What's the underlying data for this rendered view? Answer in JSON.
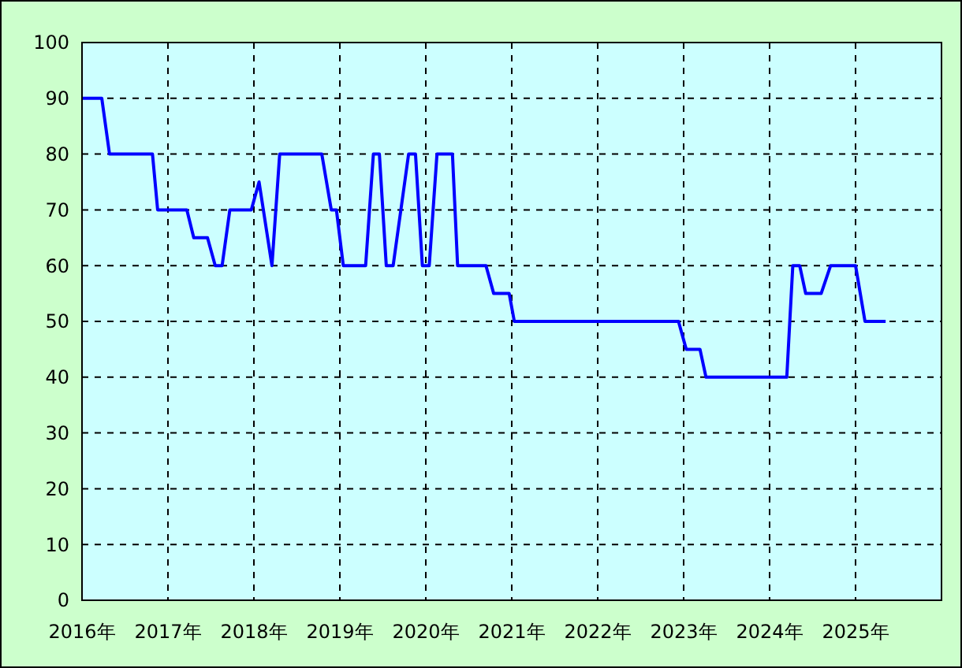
{
  "chart_data": {
    "type": "line",
    "xlim": [
      2016,
      2026
    ],
    "ylim": [
      0,
      100
    ],
    "xticks": [
      {
        "value": 2016,
        "label": "2016年"
      },
      {
        "value": 2017,
        "label": "2017年"
      },
      {
        "value": 2018,
        "label": "2018年"
      },
      {
        "value": 2019,
        "label": "2019年"
      },
      {
        "value": 2020,
        "label": "2020年"
      },
      {
        "value": 2021,
        "label": "2021年"
      },
      {
        "value": 2022,
        "label": "2022年"
      },
      {
        "value": 2023,
        "label": "2023年"
      },
      {
        "value": 2024,
        "label": "2024年"
      },
      {
        "value": 2025,
        "label": "2025年"
      },
      {
        "value": 2026,
        "label": null
      }
    ],
    "yticks": [
      0,
      10,
      20,
      30,
      40,
      50,
      60,
      70,
      80,
      90,
      100
    ],
    "grid": true,
    "line_style": "solid",
    "marker": "none",
    "series": [
      {
        "color": "#0000ff",
        "x": [
          2016.0,
          2016.23,
          2016.32,
          2016.82,
          2016.88,
          2017.22,
          2017.3,
          2017.46,
          2017.55,
          2017.63,
          2017.72,
          2017.97,
          2018.06,
          2018.21,
          2018.3,
          2018.79,
          2018.9,
          2018.96,
          2019.04,
          2019.3,
          2019.39,
          2019.46,
          2019.54,
          2019.62,
          2019.8,
          2019.88,
          2019.96,
          2020.04,
          2020.13,
          2020.31,
          2020.37,
          2020.7,
          2020.79,
          2020.97,
          2021.03,
          2022.94,
          2023.03,
          2023.19,
          2023.26,
          2024.2,
          2024.27,
          2024.35,
          2024.42,
          2024.6,
          2024.71,
          2025.0,
          2025.11,
          2025.35
        ],
        "values": [
          90,
          90,
          80,
          80,
          70,
          70,
          65,
          65,
          60,
          60,
          70,
          70,
          75,
          60,
          80,
          80,
          70,
          70,
          60,
          60,
          80,
          80,
          60,
          60,
          80,
          80,
          60,
          60,
          80,
          80,
          60,
          60,
          55,
          55,
          50,
          50,
          45,
          45,
          40,
          40,
          60,
          60,
          55,
          55,
          60,
          60,
          50,
          50
        ]
      }
    ]
  }
}
